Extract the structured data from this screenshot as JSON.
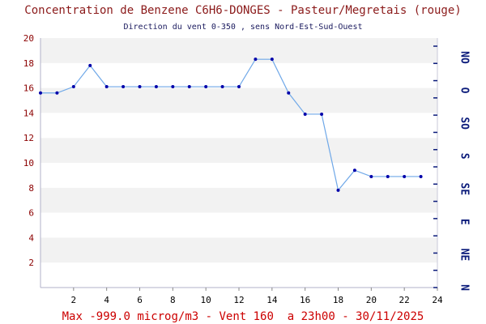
{
  "chart_data": {
    "type": "line",
    "title": "Concentration de Benzene C6H6-DONGES - Pasteur/Megretais (rouge)",
    "subtitle": "Direction du vent 0-350 , sens Nord-Est-Sud-Ouest",
    "footer": "Max -999.0 microg/m3 - Vent 160  a 23h00 - 30/11/2025",
    "xlim": [
      0,
      24
    ],
    "ylim": [
      0,
      20
    ],
    "xticks": [
      2,
      4,
      6,
      8,
      10,
      12,
      14,
      16,
      18,
      20,
      22,
      24
    ],
    "yticks": [
      2,
      4,
      6,
      8,
      10,
      12,
      14,
      16,
      18,
      20
    ],
    "grid": "horizontal bands",
    "series": [
      {
        "color": "#6fa8e8",
        "x": [
          0,
          1,
          2,
          3,
          4,
          5,
          6,
          7,
          8,
          9,
          10,
          11,
          12,
          13,
          14,
          15,
          16,
          17,
          18,
          19,
          20,
          21,
          22,
          23
        ],
        "y": [
          15.6,
          15.6,
          16.1,
          17.8,
          16.1,
          16.1,
          16.1,
          16.1,
          16.1,
          16.1,
          16.1,
          16.1,
          16.1,
          18.3,
          18.3,
          15.6,
          13.9,
          13.9,
          7.8,
          9.4,
          8.9,
          8.9,
          8.9,
          8.9
        ]
      }
    ],
    "wind_direction_labels": [
      "NO",
      "O",
      "SO",
      "S",
      "SE",
      "E",
      "NE",
      "N"
    ]
  },
  "colors": {
    "title": "#8b1a1a",
    "footer": "#cc0000",
    "line": "#6fa8e8",
    "points": "#0000aa",
    "band": "#f2f2f2",
    "direction": "#0a1a7a"
  }
}
